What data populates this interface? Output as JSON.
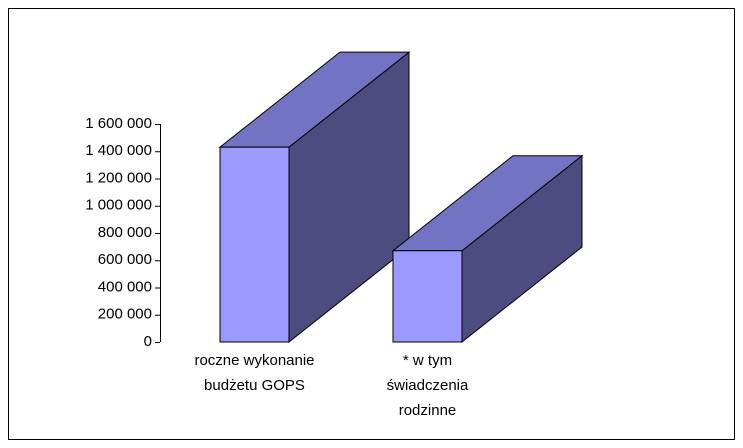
{
  "chart_data": {
    "type": "bar3d",
    "categories": [
      "roczne wykonanie budżetu GOPS",
      "* w tym świadczenia rodzinne"
    ],
    "values": [
      1430000,
      670000
    ],
    "color": "#9999ff",
    "top_color": "#7373c4",
    "side_color": "#4c4c80",
    "ylim": [
      0,
      1600000
    ],
    "yticks": [
      0,
      {
        "value": 200000,
        "label": "200 000"
      },
      {
        "value": 400000,
        "label": "400 000"
      },
      {
        "value": 600000,
        "label": "600 000"
      },
      {
        "value": 800000,
        "label": "800 000"
      },
      {
        "value": 1000000,
        "label": "1 000 000"
      },
      {
        "value": 1200000,
        "label": "1 200 000"
      },
      {
        "value": 1400000,
        "label": "1 400 000"
      },
      {
        "value": 1600000,
        "label": "1 600 000"
      }
    ],
    "grid": false
  }
}
